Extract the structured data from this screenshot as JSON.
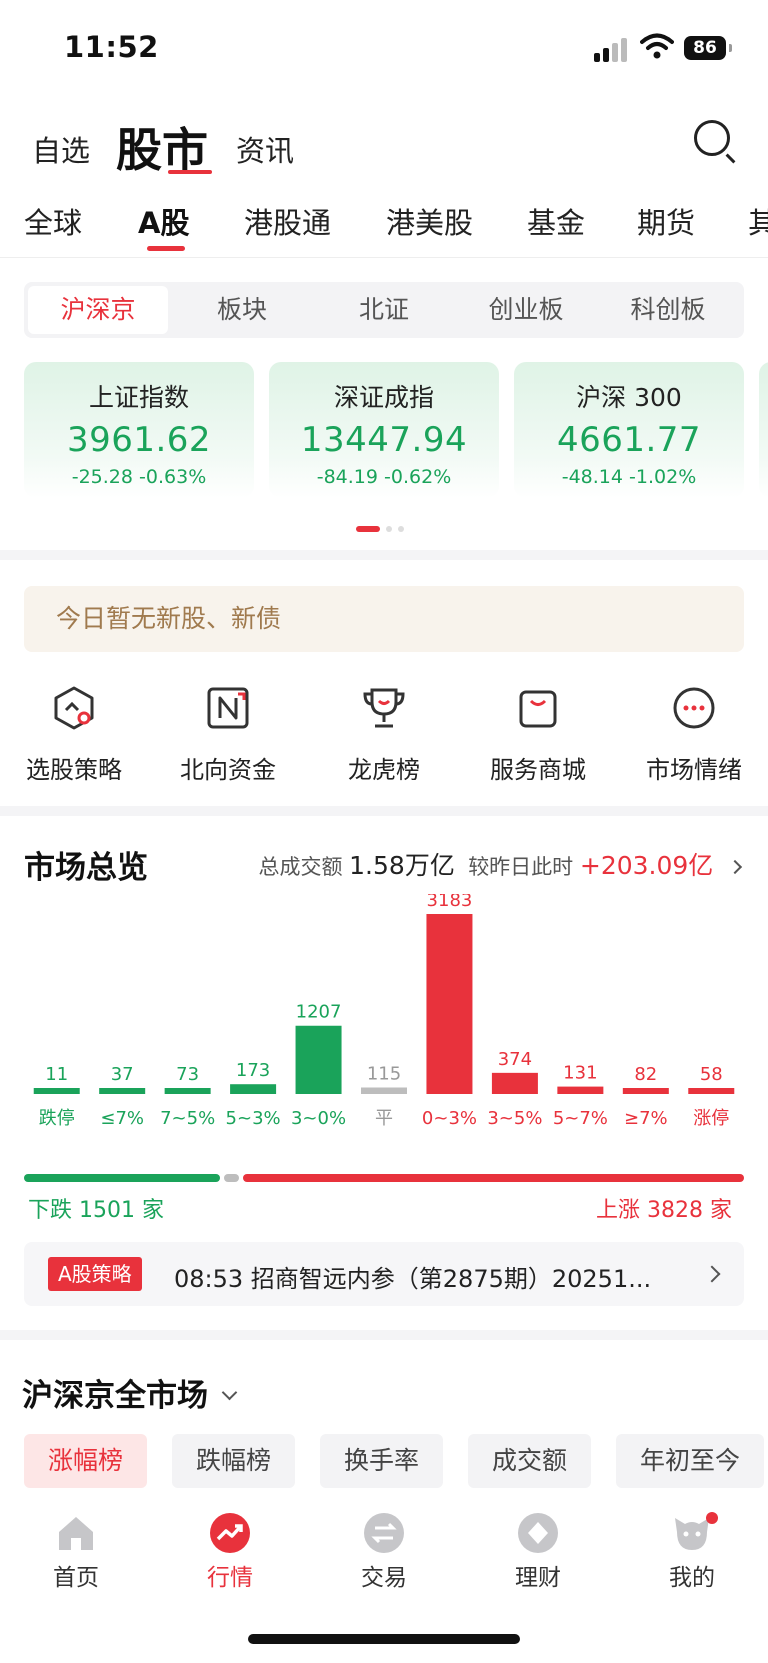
{
  "status": {
    "time": "11:52",
    "battery": "86"
  },
  "header": {
    "watchlist": "自选",
    "market": "股市",
    "news": "资讯"
  },
  "top_tabs": [
    "全球",
    "A股",
    "港股通",
    "港美股",
    "基金",
    "期货",
    "其"
  ],
  "segments": [
    "沪深京",
    "板块",
    "北证",
    "创业板",
    "科创板"
  ],
  "indices": [
    {
      "name": "上证指数",
      "value": "3961.62",
      "change": "-25.28",
      "pct": "-0.63%"
    },
    {
      "name": "深证成指",
      "value": "13447.94",
      "change": "-84.19",
      "pct": "-0.62%"
    },
    {
      "name": "沪深 300",
      "value": "4661.77",
      "change": "-48.14",
      "pct": "-1.02%"
    }
  ],
  "notice": "今日暂无新股、新债",
  "quick": [
    "选股策略",
    "北向资金",
    "龙虎榜",
    "服务商城",
    "市场情绪"
  ],
  "overview": {
    "title": "市场总览",
    "turnover_label": "总成交额",
    "turnover": "1.58万亿",
    "compare_label": "较昨日此时",
    "compare": "+203.09亿"
  },
  "chart_data": {
    "type": "bar",
    "categories": [
      "跌停",
      "≤7%",
      "7~5%",
      "5~3%",
      "3~0%",
      "平",
      "0~3%",
      "3~5%",
      "5~7%",
      "≥7%",
      "涨停"
    ],
    "values": [
      11,
      37,
      73,
      173,
      1207,
      115,
      3183,
      374,
      131,
      82,
      58
    ],
    "colors": [
      "#1aa35a",
      "#1aa35a",
      "#1aa35a",
      "#1aa35a",
      "#1aa35a",
      "#bdbdbd",
      "#e8323c",
      "#e8323c",
      "#e8323c",
      "#e8323c",
      "#e8323c"
    ]
  },
  "breadth": {
    "fall": "下跌 1501 家",
    "rise": "上涨 3828 家",
    "fall_n": 1501,
    "flat_n": 115,
    "rise_n": 3828
  },
  "strategy": {
    "badge": "A股策略",
    "text": "08:53 招商智远内参（第2875期）20251..."
  },
  "all_market": {
    "title": "沪深京全市场"
  },
  "rank_tabs": [
    "涨幅榜",
    "跌幅榜",
    "换手率",
    "成交额",
    "年初至今"
  ],
  "nav": [
    "首页",
    "行情",
    "交易",
    "理财",
    "我的"
  ],
  "colors": {
    "up": "#e8323c",
    "down": "#1aa35a",
    "flat": "#bdbdbd"
  }
}
